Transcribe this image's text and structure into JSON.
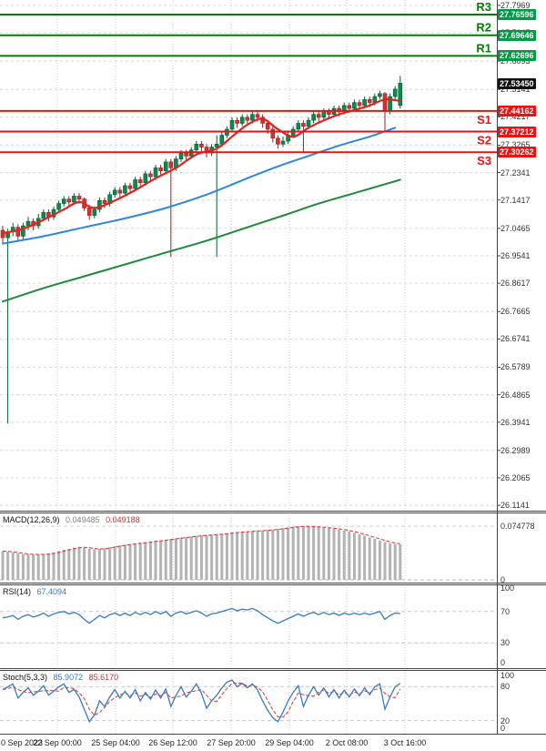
{
  "colors": {
    "bull": "#0a8a4e",
    "bull_stroke": "#065c33",
    "bear": "#d63031",
    "bear_stroke": "#992222",
    "ma_fast": "#e02424",
    "ma_mid": "#2e86de",
    "ma_slow": "#1e8a3c",
    "resistance": "#008000",
    "support": "#ee1111",
    "flag_resistance_bg": "#009944",
    "flag_support_bg": "#ee1111",
    "flag_current_bg": "#111111",
    "macd_hist": "#b3b3b3",
    "signal": "#e03030",
    "rsi_line": "#3a7abf",
    "stoch_main": "#3a7abf",
    "stoch_signal": "#e03030",
    "grid": "#d8d8d8",
    "axis_border": "#444444"
  },
  "levels": [
    {
      "label": "R3",
      "price": 27.76596,
      "flag": "27.76596",
      "type": "resistance"
    },
    {
      "label": "R2",
      "price": 27.69646,
      "flag": "27.69646",
      "type": "resistance"
    },
    {
      "label": "R1",
      "price": 27.62696,
      "flag": "27.62696",
      "type": "resistance"
    },
    {
      "label": "S1",
      "price": 27.44162,
      "flag": "27.44162",
      "type": "support"
    },
    {
      "label": "S2",
      "price": 27.37212,
      "flag": "27.37212",
      "type": "support"
    },
    {
      "label": "S3",
      "price": 27.30262,
      "flag": "27.30262",
      "type": "support"
    }
  ],
  "current_price": {
    "flag": "27.53450",
    "price": 27.5345
  },
  "price_axis_ticks": [
    "27.7969",
    "27.7045",
    "27.6093",
    "27.5141",
    "27.4217",
    "27.3265",
    "27.2341",
    "27.1417",
    "27.0465",
    "26.9541",
    "26.8617",
    "26.7665",
    "26.6741",
    "26.5789",
    "26.4865",
    "26.3941",
    "26.2989",
    "26.2065",
    "26.1141"
  ],
  "time_axis_labels": [
    "0 Sep 2023",
    "22 Sep 00:00",
    "25 Sep 04:00",
    "26 Sep 12:00",
    "27 Sep 20:00",
    "29 Sep 04:00",
    "2 Oct 08:00",
    "3 Oct 16:00"
  ],
  "chart_data": {
    "type": "candlestick",
    "title": "",
    "ylim": [
      26.1141,
      27.815
    ],
    "grid": "on",
    "candles": [
      [
        27.04,
        27.055,
        26.995,
        27.015
      ],
      [
        27.015,
        27.045,
        26.39,
        27.035
      ],
      [
        27.035,
        27.065,
        27.02,
        27.05
      ],
      [
        27.05,
        27.06,
        27.005,
        27.02
      ],
      [
        27.02,
        27.065,
        27.01,
        27.055
      ],
      [
        27.055,
        27.085,
        27.04,
        27.07
      ],
      [
        27.07,
        27.08,
        27.04,
        27.055
      ],
      [
        27.055,
        27.095,
        27.045,
        27.08
      ],
      [
        27.08,
        27.11,
        27.07,
        27.1
      ],
      [
        27.1,
        27.11,
        27.07,
        27.085
      ],
      [
        27.085,
        27.12,
        27.075,
        27.11
      ],
      [
        27.11,
        27.14,
        27.1,
        27.13
      ],
      [
        27.13,
        27.155,
        27.12,
        27.145
      ],
      [
        27.145,
        27.155,
        27.12,
        27.135
      ],
      [
        27.135,
        27.165,
        27.125,
        27.155
      ],
      [
        27.155,
        27.165,
        27.13,
        27.145
      ],
      [
        27.145,
        27.15,
        27.105,
        27.115
      ],
      [
        27.115,
        27.125,
        27.075,
        27.09
      ],
      [
        27.09,
        27.12,
        27.08,
        27.11
      ],
      [
        27.11,
        27.15,
        27.1,
        27.14
      ],
      [
        27.14,
        27.15,
        27.115,
        27.13
      ],
      [
        27.13,
        27.17,
        27.12,
        27.16
      ],
      [
        27.16,
        27.185,
        27.15,
        27.175
      ],
      [
        27.175,
        27.185,
        27.15,
        27.165
      ],
      [
        27.165,
        27.2,
        27.155,
        27.19
      ],
      [
        27.19,
        27.2,
        27.165,
        27.18
      ],
      [
        27.18,
        27.22,
        27.17,
        27.21
      ],
      [
        27.21,
        27.22,
        27.185,
        27.2
      ],
      [
        27.2,
        27.24,
        27.19,
        27.23
      ],
      [
        27.23,
        27.24,
        27.205,
        27.22
      ],
      [
        27.22,
        27.26,
        27.21,
        27.25
      ],
      [
        27.25,
        27.26,
        27.225,
        27.24
      ],
      [
        27.24,
        27.28,
        27.23,
        27.27
      ],
      [
        27.27,
        27.28,
        26.95,
        27.25
      ],
      [
        27.25,
        27.29,
        27.24,
        27.28
      ],
      [
        27.28,
        27.31,
        27.27,
        27.3
      ],
      [
        27.3,
        27.31,
        27.275,
        27.29
      ],
      [
        27.29,
        27.32,
        27.28,
        27.31
      ],
      [
        27.31,
        27.34,
        27.3,
        27.33
      ],
      [
        27.33,
        27.34,
        27.305,
        27.32
      ],
      [
        27.32,
        27.33,
        27.285,
        27.3
      ],
      [
        27.3,
        27.33,
        27.29,
        27.32
      ],
      [
        27.32,
        27.36,
        26.95,
        27.33
      ],
      [
        27.33,
        27.37,
        27.32,
        27.36
      ],
      [
        27.36,
        27.39,
        27.35,
        27.38
      ],
      [
        27.38,
        27.42,
        27.37,
        27.41
      ],
      [
        27.41,
        27.42,
        27.385,
        27.4
      ],
      [
        27.4,
        27.43,
        27.39,
        27.42
      ],
      [
        27.42,
        27.43,
        27.395,
        27.41
      ],
      [
        27.41,
        27.44,
        27.4,
        27.43
      ],
      [
        27.43,
        27.44,
        27.405,
        27.42
      ],
      [
        27.42,
        27.43,
        27.385,
        27.4
      ],
      [
        27.4,
        27.41,
        27.365,
        27.38
      ],
      [
        27.38,
        27.39,
        27.335,
        27.35
      ],
      [
        27.35,
        27.36,
        27.315,
        27.33
      ],
      [
        27.33,
        27.355,
        27.32,
        27.34
      ],
      [
        27.34,
        27.37,
        27.33,
        27.36
      ],
      [
        27.36,
        27.39,
        27.35,
        27.38
      ],
      [
        27.38,
        27.41,
        27.37,
        27.4
      ],
      [
        27.4,
        27.41,
        27.3,
        27.39
      ],
      [
        27.39,
        27.42,
        27.38,
        27.41
      ],
      [
        27.41,
        27.44,
        27.4,
        27.43
      ],
      [
        27.43,
        27.44,
        27.405,
        27.42
      ],
      [
        27.42,
        27.45,
        27.41,
        27.44
      ],
      [
        27.44,
        27.45,
        27.415,
        27.43
      ],
      [
        27.43,
        27.46,
        27.42,
        27.45
      ],
      [
        27.45,
        27.46,
        27.425,
        27.44
      ],
      [
        27.44,
        27.47,
        27.43,
        27.46
      ],
      [
        27.46,
        27.47,
        27.435,
        27.45
      ],
      [
        27.45,
        27.48,
        27.44,
        27.47
      ],
      [
        27.47,
        27.48,
        27.445,
        27.46
      ],
      [
        27.46,
        27.49,
        27.45,
        27.48
      ],
      [
        27.48,
        27.49,
        27.455,
        27.47
      ],
      [
        27.47,
        27.5,
        27.46,
        27.49
      ],
      [
        27.49,
        27.51,
        27.48,
        27.5
      ],
      [
        27.5,
        27.505,
        27.37,
        27.44
      ],
      [
        27.44,
        27.5,
        27.43,
        27.49
      ],
      [
        27.49,
        27.525,
        27.48,
        27.515
      ],
      [
        27.46,
        27.56,
        27.45,
        27.535
      ]
    ],
    "moving_averages": [
      {
        "name": "slow-ma",
        "color_key": "ma_slow",
        "points": [
          [
            0,
            26.8
          ],
          [
            8,
            26.845
          ],
          [
            16,
            26.885
          ],
          [
            24,
            26.925
          ],
          [
            32,
            26.965
          ],
          [
            40,
            27.005
          ],
          [
            48,
            27.05
          ],
          [
            56,
            27.095
          ],
          [
            62,
            27.13
          ],
          [
            68,
            27.16
          ],
          [
            74,
            27.19
          ],
          [
            78,
            27.21
          ]
        ]
      },
      {
        "name": "mid-ma",
        "color_key": "ma_mid",
        "points": [
          [
            0,
            26.995
          ],
          [
            8,
            27.02
          ],
          [
            16,
            27.05
          ],
          [
            24,
            27.08
          ],
          [
            32,
            27.115
          ],
          [
            40,
            27.16
          ],
          [
            48,
            27.215
          ],
          [
            54,
            27.255
          ],
          [
            60,
            27.29
          ],
          [
            66,
            27.325
          ],
          [
            72,
            27.355
          ],
          [
            77,
            27.385
          ]
        ]
      },
      {
        "name": "fast-ma",
        "color_key": "ma_fast",
        "points": [
          [
            0,
            27.03
          ],
          [
            4,
            27.045
          ],
          [
            8,
            27.075
          ],
          [
            12,
            27.11
          ],
          [
            15,
            27.135
          ],
          [
            18,
            27.115
          ],
          [
            22,
            27.14
          ],
          [
            26,
            27.175
          ],
          [
            30,
            27.215
          ],
          [
            34,
            27.25
          ],
          [
            38,
            27.295
          ],
          [
            42,
            27.315
          ],
          [
            45,
            27.355
          ],
          [
            48,
            27.395
          ],
          [
            51,
            27.415
          ],
          [
            54,
            27.38
          ],
          [
            57,
            27.355
          ],
          [
            60,
            27.385
          ],
          [
            63,
            27.41
          ],
          [
            66,
            27.43
          ],
          [
            69,
            27.445
          ],
          [
            72,
            27.46
          ],
          [
            75,
            27.48
          ],
          [
            78,
            27.475
          ]
        ]
      }
    ],
    "indicators": {
      "macd": {
        "label": "MACD(12,26,9)",
        "value_main": "0.049485",
        "value_signal": "0.049188",
        "scale_max": 0.074778,
        "scale": [
          "0.074778",
          "0"
        ],
        "values": [
          0.04,
          0.039,
          0.038,
          0.037,
          0.036,
          0.0355,
          0.035,
          0.0355,
          0.036,
          0.0365,
          0.038,
          0.04,
          0.042,
          0.043,
          0.045,
          0.046,
          0.045,
          0.0435,
          0.0425,
          0.043,
          0.044,
          0.0455,
          0.047,
          0.048,
          0.049,
          0.05,
          0.051,
          0.0515,
          0.0525,
          0.0535,
          0.0545,
          0.055,
          0.056,
          0.057,
          0.058,
          0.059,
          0.0595,
          0.0605,
          0.0615,
          0.062,
          0.0625,
          0.063,
          0.0635,
          0.064,
          0.065,
          0.066,
          0.0665,
          0.067,
          0.0675,
          0.068,
          0.0685,
          0.069,
          0.0695,
          0.07,
          0.071,
          0.072,
          0.073,
          0.074,
          0.0748,
          0.0745,
          0.0742,
          0.0738,
          0.0732,
          0.0726,
          0.072,
          0.0712,
          0.07,
          0.0688,
          0.0672,
          0.0655,
          0.0635,
          0.0615,
          0.0592,
          0.057,
          0.0548,
          0.0528,
          0.0512,
          0.05,
          0.0495
        ]
      },
      "rsi": {
        "label": "RSI(14)",
        "value": "67.4094",
        "levels": [
          70,
          30
        ],
        "scale": [
          "100",
          "70",
          "30",
          "0"
        ],
        "values": [
          62,
          63,
          65,
          60,
          64,
          66,
          63,
          65,
          68,
          64,
          67,
          69,
          70,
          67,
          69,
          66,
          60,
          55,
          60,
          65,
          62,
          66,
          68,
          65,
          68,
          65,
          69,
          66,
          69,
          66,
          70,
          67,
          70,
          64,
          68,
          70,
          67,
          69,
          71,
          68,
          64,
          67,
          68,
          70,
          72,
          74,
          71,
          73,
          72,
          74,
          71,
          66,
          62,
          58,
          55,
          58,
          61,
          64,
          67,
          64,
          67,
          69,
          66,
          69,
          66,
          68,
          65,
          68,
          66,
          68,
          66,
          68,
          66,
          68,
          70,
          60,
          65,
          68,
          67.4
        ]
      },
      "stoch": {
        "label": "Stoch(5,3,3)",
        "value_main": "85.9072",
        "value_signal": "85.6170",
        "levels": [
          80,
          20
        ],
        "scale": [
          "100",
          "80",
          "20",
          "0"
        ],
        "values": [
          75,
          80,
          85,
          60,
          70,
          78,
          65,
          72,
          82,
          65,
          72,
          80,
          85,
          70,
          75,
          62,
          40,
          18,
          30,
          55,
          45,
          62,
          75,
          60,
          72,
          60,
          75,
          55,
          70,
          58,
          74,
          60,
          76,
          45,
          65,
          80,
          62,
          72,
          85,
          68,
          42,
          55,
          65,
          78,
          88,
          92,
          80,
          86,
          78,
          85,
          74,
          55,
          38,
          25,
          18,
          35,
          55,
          70,
          82,
          45,
          65,
          80,
          65,
          78,
          62,
          75,
          60,
          74,
          62,
          76,
          64,
          78,
          66,
          80,
          85,
          40,
          62,
          80,
          85.9
        ]
      }
    }
  }
}
